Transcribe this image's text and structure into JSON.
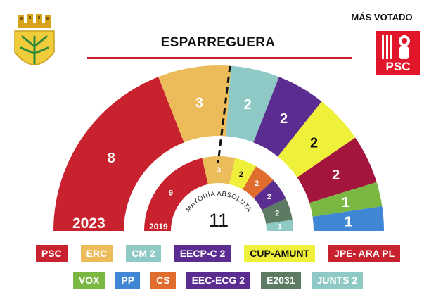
{
  "header": {
    "title": "ESPARREGUERA",
    "winner_label": "MÁS VOTADO",
    "winner_party": "PSC",
    "winner_color": "#e2162b"
  },
  "chart_data": {
    "type": "parliament-hemicycle",
    "majority_label": "MAYORÍA ABSOLUTA",
    "majority_value": 11,
    "rings": [
      {
        "year_label": "2023",
        "seats": [
          {
            "party": "PSC",
            "value": 8,
            "color": "#c8222e"
          },
          {
            "party": "ERC",
            "value": 3,
            "color": "#ecbc5b"
          },
          {
            "party": "CM 2",
            "value": 2,
            "color": "#8ec9c6"
          },
          {
            "party": "EECP-C 2",
            "value": 2,
            "color": "#5c2d91"
          },
          {
            "party": "CUP-AMUNT",
            "value": 2,
            "color": "#eef03a"
          },
          {
            "party": "JPE- ARA PL",
            "value": 2,
            "color": "#a4153d"
          },
          {
            "party": "VOX",
            "value": 1,
            "color": "#7ab843"
          },
          {
            "party": "PP",
            "value": 1,
            "color": "#3f87d5"
          }
        ]
      },
      {
        "year_label": "2019",
        "seats": [
          {
            "party": "PSC",
            "value": 9,
            "color": "#c8222e"
          },
          {
            "party": "ERC",
            "value": 3,
            "color": "#ecbc5b"
          },
          {
            "party": "CUP-AMUNT",
            "value": 2,
            "color": "#eef03a"
          },
          {
            "party": "CS",
            "value": 2,
            "color": "#e06c2d"
          },
          {
            "party": "EECP-C 2",
            "value": 2,
            "color": "#5c2d91"
          },
          {
            "party": "E2031",
            "value": 2,
            "color": "#5d7b63"
          },
          {
            "party": "JUNTS 2",
            "value": 1,
            "color": "#8ec9c6"
          }
        ]
      }
    ]
  },
  "legend": {
    "row1": [
      {
        "label": "PSC",
        "color": "#c8222e"
      },
      {
        "label": "ERC",
        "color": "#ecbc5b"
      },
      {
        "label": "CM 2",
        "color": "#8ec9c6"
      },
      {
        "label": "EECP-C 2",
        "color": "#5c2d91"
      },
      {
        "label": "CUP-AMUNT",
        "color": "#eef03a",
        "dark": true
      },
      {
        "label": "JPE- ARA PL",
        "color": "#c8222e"
      }
    ],
    "row2": [
      {
        "label": "VOX",
        "color": "#7ab843"
      },
      {
        "label": "PP",
        "color": "#3f87d5"
      },
      {
        "label": "CS",
        "color": "#e06c2d"
      },
      {
        "label": "EEC-ECG 2",
        "color": "#5c2d91"
      },
      {
        "label": "E2031",
        "color": "#5d7b63"
      },
      {
        "label": "JUNTS 2",
        "color": "#8ec9c6"
      }
    ]
  }
}
